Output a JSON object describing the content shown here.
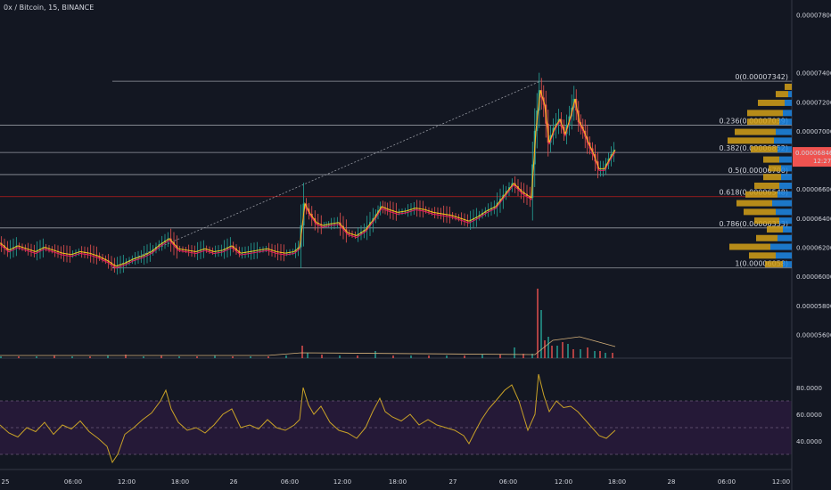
{
  "header": {
    "title": "0x / Bitcoin, 15, BINANCE"
  },
  "colors": {
    "background": "#131722",
    "up": "#26a69a",
    "down": "#ef5350",
    "ma_fast": "#f0c419",
    "ma_slow": "#e91e63",
    "fib_line": "#9598a1",
    "fib_highlight": "#b71c1c",
    "rsi": "#c9a227",
    "rsi_band": "#2a1a3d",
    "volume_profile_up": "#1e88e5",
    "volume_profile_down": "#d4a017",
    "price_tag": "#ef5350"
  },
  "price_axis": {
    "labels": [
      "0.00007800",
      "0.00007400",
      "0.00007200",
      "0.00007000",
      "0.00006846",
      "0.00006600",
      "0.00006400",
      "0.00006200",
      "0.00006000",
      "0.00005800",
      "0.00005600"
    ],
    "current_price": "0.00006846",
    "countdown": "12:27"
  },
  "rsi_axis": {
    "labels": [
      "80.0000",
      "60.0000",
      "40.0000"
    ]
  },
  "time_axis": {
    "labels": [
      "25",
      "06:00",
      "12:00",
      "18:00",
      "26",
      "06:00",
      "12:00",
      "18:00",
      "27",
      "06:00",
      "12:00",
      "18:00",
      "28",
      "06:00",
      "12:00"
    ]
  },
  "fib_levels": [
    {
      "label": "0(0.00007342)",
      "price": 7.342e-05
    },
    {
      "label": "0.236(0.00007039)",
      "price": 7.039e-05
    },
    {
      "label": "0.382(0.00006852)",
      "price": 6.852e-05
    },
    {
      "label": "0.5(0.00006700)",
      "price": 6.7e-05
    },
    {
      "label": "0.618(0.00006548)",
      "price": 6.548e-05
    },
    {
      "label": "0.786(0.00006333)",
      "price": 6.333e-05
    },
    {
      "label": "1(0.00006058)",
      "price": 6.058e-05
    }
  ],
  "chart_data": {
    "type": "line",
    "title": "0x / Bitcoin, 15, BINANCE",
    "y_range": [
      5.45e-05,
      7.9e-05
    ],
    "price_path": [
      [
        0,
        6.23e-05
      ],
      [
        10,
        6.18e-05
      ],
      [
        20,
        6.21e-05
      ],
      [
        30,
        6.19e-05
      ],
      [
        40,
        6.17e-05
      ],
      [
        50,
        6.2e-05
      ],
      [
        60,
        6.18e-05
      ],
      [
        70,
        6.16e-05
      ],
      [
        80,
        6.15e-05
      ],
      [
        90,
        6.17e-05
      ],
      [
        100,
        6.16e-05
      ],
      [
        110,
        6.14e-05
      ],
      [
        120,
        6.11e-05
      ],
      [
        130,
        6.07e-05
      ],
      [
        140,
        6.09e-05
      ],
      [
        150,
        6.12e-05
      ],
      [
        160,
        6.14e-05
      ],
      [
        170,
        6.17e-05
      ],
      [
        180,
        6.22e-05
      ],
      [
        190,
        6.26e-05
      ],
      [
        200,
        6.19e-05
      ],
      [
        210,
        6.18e-05
      ],
      [
        220,
        6.17e-05
      ],
      [
        230,
        6.19e-05
      ],
      [
        240,
        6.17e-05
      ],
      [
        250,
        6.18e-05
      ],
      [
        260,
        6.21e-05
      ],
      [
        270,
        6.16e-05
      ],
      [
        280,
        6.17e-05
      ],
      [
        290,
        6.18e-05
      ],
      [
        300,
        6.19e-05
      ],
      [
        310,
        6.17e-05
      ],
      [
        320,
        6.16e-05
      ],
      [
        330,
        6.17e-05
      ],
      [
        336,
        6.2e-05
      ],
      [
        342,
        6.5e-05
      ],
      [
        348,
        6.43e-05
      ],
      [
        355,
        6.37e-05
      ],
      [
        362,
        6.35e-05
      ],
      [
        370,
        6.36e-05
      ],
      [
        380,
        6.37e-05
      ],
      [
        390,
        6.3e-05
      ],
      [
        400,
        6.28e-05
      ],
      [
        410,
        6.32e-05
      ],
      [
        420,
        6.4e-05
      ],
      [
        428,
        6.48e-05
      ],
      [
        436,
        6.46e-05
      ],
      [
        446,
        6.44e-05
      ],
      [
        456,
        6.45e-05
      ],
      [
        466,
        6.47e-05
      ],
      [
        476,
        6.46e-05
      ],
      [
        486,
        6.44e-05
      ],
      [
        496,
        6.43e-05
      ],
      [
        506,
        6.42e-05
      ],
      [
        516,
        6.4e-05
      ],
      [
        526,
        6.38e-05
      ],
      [
        536,
        6.41e-05
      ],
      [
        546,
        6.45e-05
      ],
      [
        556,
        6.48e-05
      ],
      [
        566,
        6.56e-05
      ],
      [
        576,
        6.64e-05
      ],
      [
        586,
        6.58e-05
      ],
      [
        596,
        6.54e-05
      ],
      [
        601,
        7e-05
      ],
      [
        606,
        7.28e-05
      ],
      [
        611,
        7.18e-05
      ],
      [
        616,
        6.92e-05
      ],
      [
        622,
        7.02e-05
      ],
      [
        628,
        7.08e-05
      ],
      [
        634,
        6.98e-05
      ],
      [
        640,
        7.1e-05
      ],
      [
        645,
        7.22e-05
      ],
      [
        650,
        7.06e-05
      ],
      [
        655,
        7e-05
      ],
      [
        660,
        6.92e-05
      ],
      [
        666,
        6.84e-05
      ],
      [
        672,
        6.74e-05
      ],
      [
        678,
        6.74e-05
      ],
      [
        684,
        6.81e-05
      ],
      [
        690,
        6.87e-05
      ]
    ],
    "rsi_path": [
      [
        0,
        52
      ],
      [
        10,
        46
      ],
      [
        20,
        43
      ],
      [
        30,
        50
      ],
      [
        40,
        47
      ],
      [
        50,
        54
      ],
      [
        60,
        45
      ],
      [
        70,
        52
      ],
      [
        80,
        49
      ],
      [
        90,
        55
      ],
      [
        100,
        47
      ],
      [
        110,
        42
      ],
      [
        120,
        36
      ],
      [
        126,
        24
      ],
      [
        132,
        30
      ],
      [
        140,
        45
      ],
      [
        150,
        50
      ],
      [
        160,
        56
      ],
      [
        170,
        61
      ],
      [
        180,
        70
      ],
      [
        186,
        78
      ],
      [
        192,
        64
      ],
      [
        200,
        54
      ],
      [
        210,
        48
      ],
      [
        220,
        50
      ],
      [
        230,
        46
      ],
      [
        240,
        52
      ],
      [
        250,
        60
      ],
      [
        260,
        64
      ],
      [
        270,
        50
      ],
      [
        280,
        52
      ],
      [
        290,
        49
      ],
      [
        300,
        56
      ],
      [
        310,
        50
      ],
      [
        320,
        48
      ],
      [
        330,
        52
      ],
      [
        336,
        56
      ],
      [
        340,
        80
      ],
      [
        346,
        67
      ],
      [
        352,
        60
      ],
      [
        360,
        66
      ],
      [
        370,
        54
      ],
      [
        380,
        48
      ],
      [
        390,
        46
      ],
      [
        400,
        42
      ],
      [
        410,
        50
      ],
      [
        418,
        62
      ],
      [
        426,
        72
      ],
      [
        432,
        62
      ],
      [
        440,
        58
      ],
      [
        450,
        55
      ],
      [
        460,
        60
      ],
      [
        470,
        52
      ],
      [
        480,
        56
      ],
      [
        490,
        52
      ],
      [
        500,
        50
      ],
      [
        510,
        48
      ],
      [
        520,
        44
      ],
      [
        526,
        38
      ],
      [
        532,
        46
      ],
      [
        540,
        56
      ],
      [
        548,
        64
      ],
      [
        556,
        70
      ],
      [
        566,
        78
      ],
      [
        574,
        82
      ],
      [
        582,
        70
      ],
      [
        592,
        48
      ],
      [
        600,
        60
      ],
      [
        604,
        90
      ],
      [
        610,
        74
      ],
      [
        616,
        62
      ],
      [
        624,
        70
      ],
      [
        632,
        65
      ],
      [
        640,
        66
      ],
      [
        648,
        62
      ],
      [
        656,
        56
      ],
      [
        664,
        50
      ],
      [
        672,
        44
      ],
      [
        680,
        42
      ],
      [
        690,
        48
      ]
    ],
    "volume": [
      [
        0,
        2
      ],
      [
        20,
        2
      ],
      [
        40,
        2
      ],
      [
        60,
        3
      ],
      [
        80,
        2
      ],
      [
        100,
        2
      ],
      [
        120,
        3
      ],
      [
        140,
        4
      ],
      [
        160,
        2
      ],
      [
        180,
        3
      ],
      [
        200,
        2
      ],
      [
        220,
        2
      ],
      [
        240,
        3
      ],
      [
        260,
        2
      ],
      [
        280,
        2
      ],
      [
        300,
        2
      ],
      [
        320,
        3
      ],
      [
        338,
        14
      ],
      [
        344,
        6
      ],
      [
        360,
        4
      ],
      [
        380,
        3
      ],
      [
        400,
        3
      ],
      [
        420,
        8
      ],
      [
        440,
        3
      ],
      [
        460,
        3
      ],
      [
        480,
        3
      ],
      [
        500,
        3
      ],
      [
        520,
        3
      ],
      [
        540,
        4
      ],
      [
        560,
        4
      ],
      [
        576,
        12
      ],
      [
        586,
        5
      ],
      [
        596,
        5
      ],
      [
        602,
        78
      ],
      [
        606,
        54
      ],
      [
        610,
        20
      ],
      [
        614,
        24
      ],
      [
        618,
        14
      ],
      [
        624,
        14
      ],
      [
        630,
        18
      ],
      [
        636,
        16
      ],
      [
        642,
        10
      ],
      [
        650,
        10
      ],
      [
        658,
        12
      ],
      [
        666,
        8
      ],
      [
        672,
        8
      ],
      [
        678,
        6
      ],
      [
        686,
        6
      ]
    ],
    "rsi_levels": [
      70,
      50,
      30
    ],
    "volume_profile": [
      {
        "price": 7.3e-05,
        "up": 0,
        "down": 8
      },
      {
        "price": 7.25e-05,
        "up": 4,
        "down": 14
      },
      {
        "price": 7.19e-05,
        "up": 8,
        "down": 30
      },
      {
        "price": 7.12e-05,
        "up": 10,
        "down": 40
      },
      {
        "price": 7.06e-05,
        "up": 14,
        "down": 36
      },
      {
        "price": 6.99e-05,
        "up": 18,
        "down": 46
      },
      {
        "price": 6.93e-05,
        "up": 20,
        "down": 52
      },
      {
        "price": 6.87e-05,
        "up": 16,
        "down": 30
      },
      {
        "price": 6.8e-05,
        "up": 14,
        "down": 18
      },
      {
        "price": 6.74e-05,
        "up": 12,
        "down": 14
      },
      {
        "price": 6.68e-05,
        "up": 12,
        "down": 20
      },
      {
        "price": 6.62e-05,
        "up": 14,
        "down": 28
      },
      {
        "price": 6.56e-05,
        "up": 16,
        "down": 36
      },
      {
        "price": 6.5e-05,
        "up": 22,
        "down": 40
      },
      {
        "price": 6.44e-05,
        "up": 18,
        "down": 36
      },
      {
        "price": 6.38e-05,
        "up": 14,
        "down": 28
      },
      {
        "price": 6.32e-05,
        "up": 10,
        "down": 18
      },
      {
        "price": 6.26e-05,
        "up": 16,
        "down": 24
      },
      {
        "price": 6.2e-05,
        "up": 24,
        "down": 46
      },
      {
        "price": 6.14e-05,
        "up": 18,
        "down": 30
      },
      {
        "price": 6.08e-05,
        "up": 10,
        "down": 20
      }
    ]
  }
}
